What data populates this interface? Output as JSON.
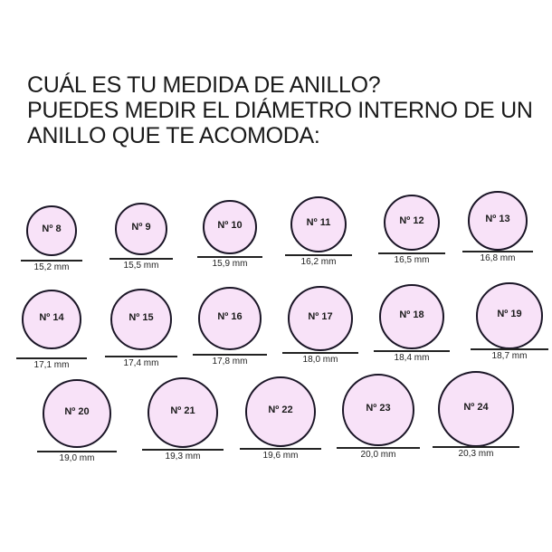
{
  "title": {
    "lines": [
      "CUÁL ES TU MEDIDA DE ANILLO?",
      "PUEDES MEDIR EL DIÁMETRO INTERNO DE UN",
      "ANILLO QUE TE ACOMODA:"
    ]
  },
  "colors": {
    "ring_fill": "#f8e2f8",
    "ring_stroke": "#1a1526"
  },
  "rings": [
    {
      "size": "Nº 8",
      "diameter": "15,2 mm"
    },
    {
      "size": "Nº 9",
      "diameter": "15,5 mm"
    },
    {
      "size": "Nº 10",
      "diameter": "15,9 mm"
    },
    {
      "size": "Nº 11",
      "diameter": "16,2 mm"
    },
    {
      "size": "Nº 12",
      "diameter": "16,5 mm"
    },
    {
      "size": "Nº 13",
      "diameter": "16,8 mm"
    },
    {
      "size": "Nº 14",
      "diameter": "17,1 mm"
    },
    {
      "size": "Nº 15",
      "diameter": "17,4 mm"
    },
    {
      "size": "Nº 16",
      "diameter": "17,8 mm"
    },
    {
      "size": "Nº 17",
      "diameter": "18,0 mm"
    },
    {
      "size": "Nº 18",
      "diameter": "18,4 mm"
    },
    {
      "size": "Nº 19",
      "diameter": "18,7 mm"
    },
    {
      "size": "Nº 20",
      "diameter": "19,0 mm"
    },
    {
      "size": "Nº 21",
      "diameter": "19,3 mm"
    },
    {
      "size": "Nº 22",
      "diameter": "19,6 mm"
    },
    {
      "size": "Nº 23",
      "diameter": "20,0 mm"
    },
    {
      "size": "Nº 24",
      "diameter": "20,3 mm"
    }
  ]
}
